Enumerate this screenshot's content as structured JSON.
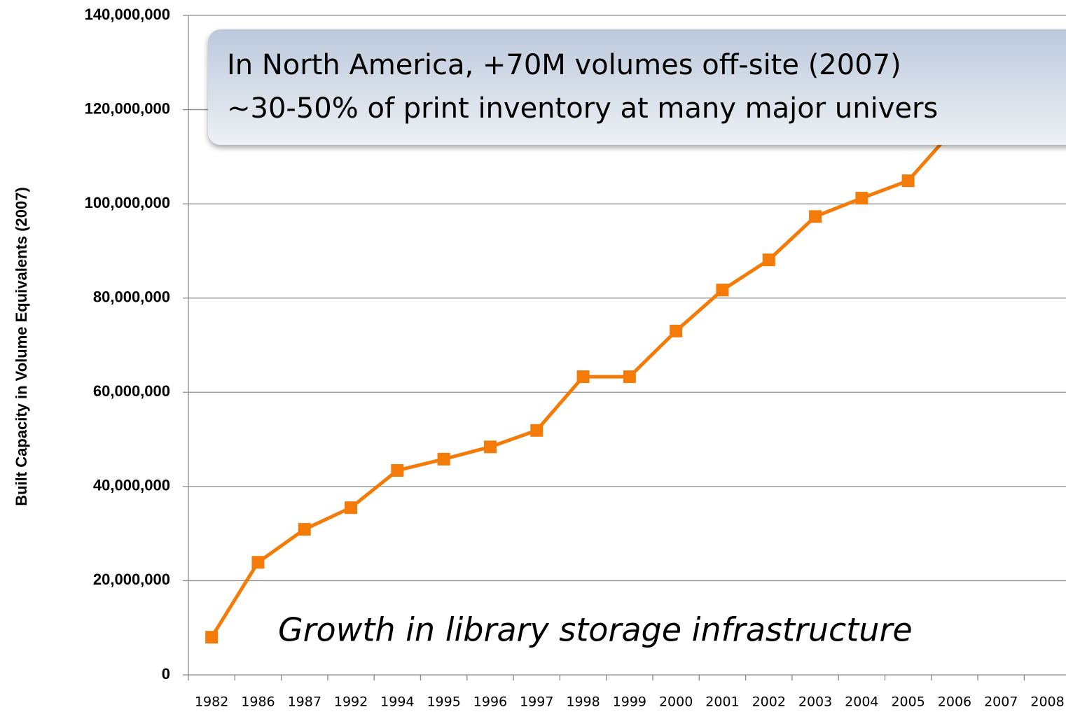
{
  "chart_data": {
    "type": "line",
    "y_label": "Built Capacity  in Volume Equivalents (2007)",
    "annotations": [
      "In North America, +70M volumes off-site (2007)",
      "~30-50%  of print inventory at many major univers",
      "Growth in library storage infrastructure"
    ],
    "categories": [
      "1982",
      "1986",
      "1987",
      "1992",
      "1994",
      "1995",
      "1996",
      "1997",
      "1998",
      "1999",
      "2000",
      "2001",
      "2002",
      "2003",
      "2004",
      "2005",
      "2006",
      "2007",
      "2008"
    ],
    "series": [
      {
        "color": "#f47b07",
        "values": [
          8000000,
          23900000,
          30900000,
          35500000,
          43400000,
          45800000,
          48400000,
          51900000,
          63300000,
          63300000,
          73000000,
          81700000,
          88100000,
          97300000,
          101200000,
          104900000,
          116000000,
          null,
          null
        ]
      }
    ],
    "ylim": [
      0,
      140000000
    ],
    "yticks": [
      0,
      {
        "value": 20000000,
        "label": "20,000,000"
      },
      {
        "value": 40000000,
        "label": "40,000,000"
      },
      {
        "value": 60000000,
        "label": "60,000,000"
      },
      {
        "value": 80000000,
        "label": "80,000,000"
      },
      {
        "value": 100000000,
        "label": "100,000,000"
      },
      {
        "value": 120000000,
        "label": "120,000,000"
      },
      {
        "value": 140000000,
        "label": "140,000,000"
      }
    ],
    "grid": true
  }
}
